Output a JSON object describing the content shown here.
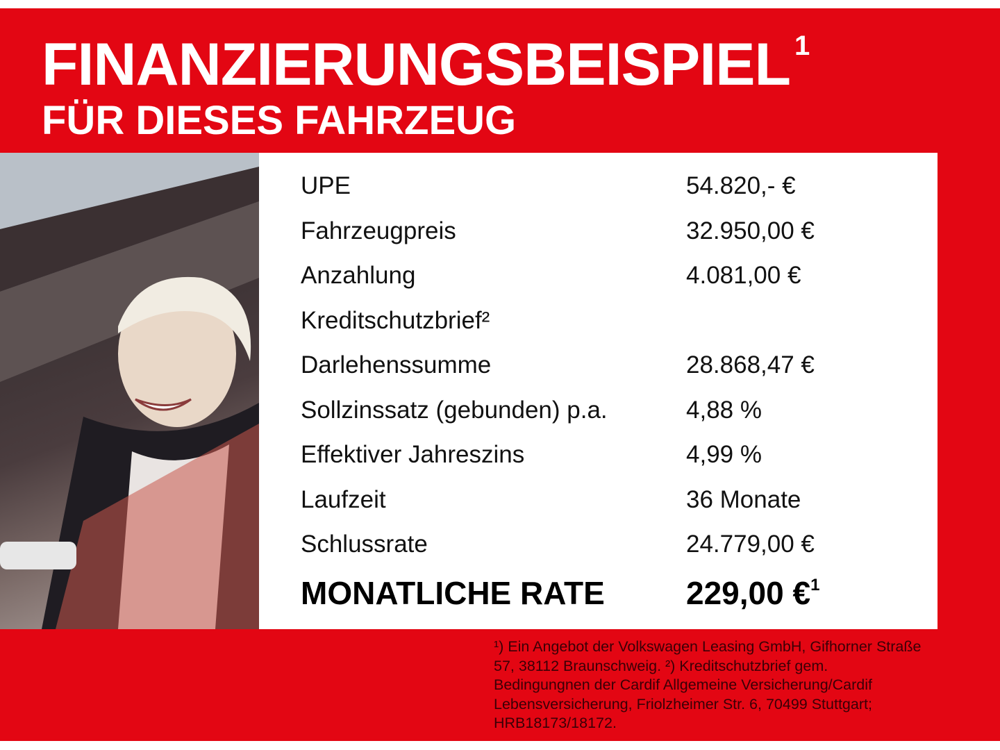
{
  "colors": {
    "brand_red": "#e30613",
    "panel": "#ffffff",
    "text": "#111111"
  },
  "header": {
    "title": "FINANZIERUNGSBEISPIEL",
    "title_sup": "1",
    "subtitle": "FÜR DIESES FAHRZEUG"
  },
  "photo": {
    "description_icon": "woman-in-car-photo"
  },
  "rows": [
    {
      "label": "UPE",
      "value": "54.820,- €"
    },
    {
      "label": "Fahrzeugpreis",
      "value": "32.950,00 €"
    },
    {
      "label": "Anzahlung",
      "value": "4.081,00 €"
    },
    {
      "label": "Kreditschutzbrief²",
      "value": ""
    },
    {
      "label": "Darlehenssumme",
      "value": "28.868,47 €"
    },
    {
      "label": "Sollzinssatz (gebunden) p.a.",
      "value": "4,88 %"
    },
    {
      "label": "Effektiver Jahreszins",
      "value": "4,99 %"
    },
    {
      "label": "Laufzeit",
      "value": "36 Monate"
    },
    {
      "label": "Schlussrate",
      "value": "24.779,00 €"
    }
  ],
  "total": {
    "label": "MONATLICHE RATE",
    "value": "229,00 €",
    "sup": "1"
  },
  "footnote": "¹) Ein Angebot der Volkswagen Leasing GmbH, Gifhorner Straße 57, 38112 Braunschweig. ²) Kreditschutzbrief gem. Bedingungnen der Cardif Allgemeine Versicherung/Cardif Lebensversicherung, Friolzheimer Str. 6, 70499 Stuttgart; HRB18173/18172."
}
